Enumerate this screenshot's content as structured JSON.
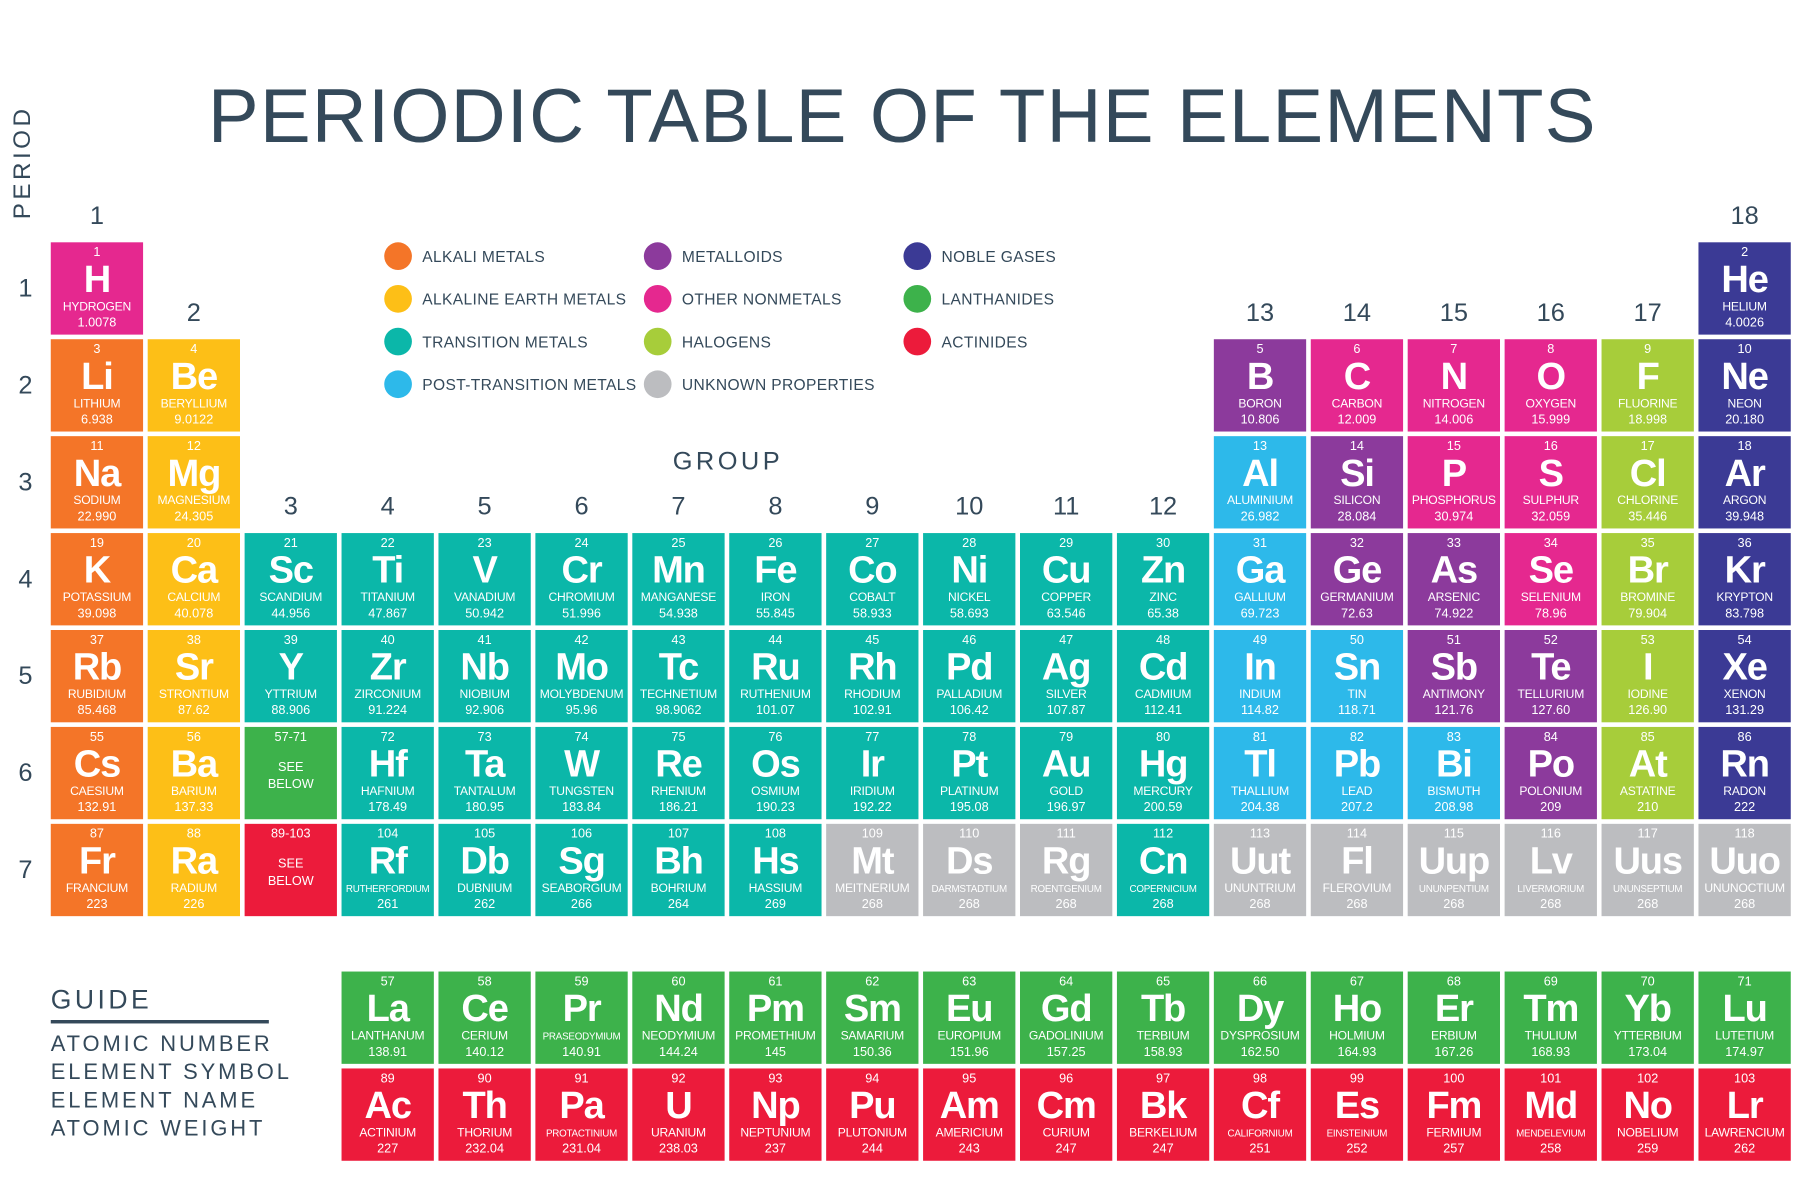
{
  "title": "PERIODIC TABLE OF THE ELEMENTS",
  "period_label": "PERIOD",
  "group_label": "GROUP",
  "periods": [
    "1",
    "2",
    "3",
    "4",
    "5",
    "6",
    "7"
  ],
  "groups": [
    "1",
    "2",
    "3",
    "4",
    "5",
    "6",
    "7",
    "8",
    "9",
    "10",
    "11",
    "12",
    "13",
    "14",
    "15",
    "16",
    "17",
    "18"
  ],
  "colors": {
    "a": "#f47528",
    "ae": "#fdbf17",
    "t": "#0bb7a9",
    "p": "#2db9ea",
    "m": "#8c3a9c",
    "n": "#e5288f",
    "h": "#a7cd3a",
    "g": "#3b3a95",
    "l": "#3db24b",
    "ac": "#ec1b3b",
    "u": "#bcbdc0",
    "text": "#34495a"
  },
  "legend": [
    {
      "key": "a",
      "label": "ALKALI METALS"
    },
    {
      "key": "ae",
      "label": "ALKALINE EARTH METALS"
    },
    {
      "key": "t",
      "label": "TRANSITION METALS"
    },
    {
      "key": "p",
      "label": "POST-TRANSITION METALS"
    },
    {
      "key": "m",
      "label": "METALLOIDS"
    },
    {
      "key": "n",
      "label": "OTHER NONMETALS"
    },
    {
      "key": "h",
      "label": "HALOGENS"
    },
    {
      "key": "u",
      "label": "UNKNOWN PROPERTIES"
    },
    {
      "key": "g",
      "label": "NOBLE GASES"
    },
    {
      "key": "l",
      "label": "LANTHANIDES"
    },
    {
      "key": "ac",
      "label": "ACTINIDES"
    }
  ],
  "placeholders": [
    {
      "period": 6,
      "group": 3,
      "range": "57-71",
      "text": "SEE BELOW",
      "cat": "l"
    },
    {
      "period": 7,
      "group": 3,
      "range": "89-103",
      "text": "SEE BELOW",
      "cat": "ac"
    }
  ],
  "elements": [
    [
      1,
      "H",
      "HYDROGEN",
      "1.0078",
      "n",
      1,
      1
    ],
    [
      2,
      "He",
      "HELIUM",
      "4.0026",
      "g",
      1,
      18
    ],
    [
      3,
      "Li",
      "LITHIUM",
      "6.938",
      "a",
      2,
      1
    ],
    [
      4,
      "Be",
      "BERYLLIUM",
      "9.0122",
      "ae",
      2,
      2
    ],
    [
      5,
      "B",
      "BORON",
      "10.806",
      "m",
      2,
      13
    ],
    [
      6,
      "C",
      "CARBON",
      "12.009",
      "n",
      2,
      14
    ],
    [
      7,
      "N",
      "NITROGEN",
      "14.006",
      "n",
      2,
      15
    ],
    [
      8,
      "O",
      "OXYGEN",
      "15.999",
      "n",
      2,
      16
    ],
    [
      9,
      "F",
      "FLUORINE",
      "18.998",
      "h",
      2,
      17
    ],
    [
      10,
      "Ne",
      "NEON",
      "20.180",
      "g",
      2,
      18
    ],
    [
      11,
      "Na",
      "SODIUM",
      "22.990",
      "a",
      3,
      1
    ],
    [
      12,
      "Mg",
      "MAGNESIUM",
      "24.305",
      "ae",
      3,
      2
    ],
    [
      13,
      "Al",
      "ALUMINIUM",
      "26.982",
      "p",
      3,
      13
    ],
    [
      14,
      "Si",
      "SILICON",
      "28.084",
      "m",
      3,
      14
    ],
    [
      15,
      "P",
      "PHOSPHORUS",
      "30.974",
      "n",
      3,
      15
    ],
    [
      16,
      "S",
      "SULPHUR",
      "32.059",
      "n",
      3,
      16
    ],
    [
      17,
      "Cl",
      "CHLORINE",
      "35.446",
      "h",
      3,
      17
    ],
    [
      18,
      "Ar",
      "ARGON",
      "39.948",
      "g",
      3,
      18
    ],
    [
      19,
      "K",
      "POTASSIUM",
      "39.098",
      "a",
      4,
      1
    ],
    [
      20,
      "Ca",
      "CALCIUM",
      "40.078",
      "ae",
      4,
      2
    ],
    [
      21,
      "Sc",
      "SCANDIUM",
      "44.956",
      "t",
      4,
      3
    ],
    [
      22,
      "Ti",
      "TITANIUM",
      "47.867",
      "t",
      4,
      4
    ],
    [
      23,
      "V",
      "VANADIUM",
      "50.942",
      "t",
      4,
      5
    ],
    [
      24,
      "Cr",
      "CHROMIUM",
      "51.996",
      "t",
      4,
      6
    ],
    [
      25,
      "Mn",
      "MANGANESE",
      "54.938",
      "t",
      4,
      7
    ],
    [
      26,
      "Fe",
      "IRON",
      "55.845",
      "t",
      4,
      8
    ],
    [
      27,
      "Co",
      "COBALT",
      "58.933",
      "t",
      4,
      9
    ],
    [
      28,
      "Ni",
      "NICKEL",
      "58.693",
      "t",
      4,
      10
    ],
    [
      29,
      "Cu",
      "COPPER",
      "63.546",
      "t",
      4,
      11
    ],
    [
      30,
      "Zn",
      "ZINC",
      "65.38",
      "t",
      4,
      12
    ],
    [
      31,
      "Ga",
      "GALLIUM",
      "69.723",
      "p",
      4,
      13
    ],
    [
      32,
      "Ge",
      "GERMANIUM",
      "72.63",
      "m",
      4,
      14
    ],
    [
      33,
      "As",
      "ARSENIC",
      "74.922",
      "m",
      4,
      15
    ],
    [
      34,
      "Se",
      "SELENIUM",
      "78.96",
      "n",
      4,
      16
    ],
    [
      35,
      "Br",
      "BROMINE",
      "79.904",
      "h",
      4,
      17
    ],
    [
      36,
      "Kr",
      "KRYPTON",
      "83.798",
      "g",
      4,
      18
    ],
    [
      37,
      "Rb",
      "RUBIDIUM",
      "85.468",
      "a",
      5,
      1
    ],
    [
      38,
      "Sr",
      "STRONTIUM",
      "87.62",
      "ae",
      5,
      2
    ],
    [
      39,
      "Y",
      "YTTRIUM",
      "88.906",
      "t",
      5,
      3
    ],
    [
      40,
      "Zr",
      "ZIRCONIUM",
      "91.224",
      "t",
      5,
      4
    ],
    [
      41,
      "Nb",
      "NIOBIUM",
      "92.906",
      "t",
      5,
      5
    ],
    [
      42,
      "Mo",
      "MOLYBDENUM",
      "95.96",
      "t",
      5,
      6
    ],
    [
      43,
      "Tc",
      "TECHNETIUM",
      "98.9062",
      "t",
      5,
      7
    ],
    [
      44,
      "Ru",
      "RUTHENIUM",
      "101.07",
      "t",
      5,
      8
    ],
    [
      45,
      "Rh",
      "RHODIUM",
      "102.91",
      "t",
      5,
      9
    ],
    [
      46,
      "Pd",
      "PALLADIUM",
      "106.42",
      "t",
      5,
      10
    ],
    [
      47,
      "Ag",
      "SILVER",
      "107.87",
      "t",
      5,
      11
    ],
    [
      48,
      "Cd",
      "CADMIUM",
      "112.41",
      "t",
      5,
      12
    ],
    [
      49,
      "In",
      "INDIUM",
      "114.82",
      "p",
      5,
      13
    ],
    [
      50,
      "Sn",
      "TIN",
      "118.71",
      "p",
      5,
      14
    ],
    [
      51,
      "Sb",
      "ANTIMONY",
      "121.76",
      "m",
      5,
      15
    ],
    [
      52,
      "Te",
      "TELLURIUM",
      "127.60",
      "m",
      5,
      16
    ],
    [
      53,
      "I",
      "IODINE",
      "126.90",
      "h",
      5,
      17
    ],
    [
      54,
      "Xe",
      "XENON",
      "131.29",
      "g",
      5,
      18
    ],
    [
      55,
      "Cs",
      "CAESIUM",
      "132.91",
      "a",
      6,
      1
    ],
    [
      56,
      "Ba",
      "BARIUM",
      "137.33",
      "ae",
      6,
      2
    ],
    [
      72,
      "Hf",
      "HAFNIUM",
      "178.49",
      "t",
      6,
      4
    ],
    [
      73,
      "Ta",
      "TANTALUM",
      "180.95",
      "t",
      6,
      5
    ],
    [
      74,
      "W",
      "TUNGSTEN",
      "183.84",
      "t",
      6,
      6
    ],
    [
      75,
      "Re",
      "RHENIUM",
      "186.21",
      "t",
      6,
      7
    ],
    [
      76,
      "Os",
      "OSMIUM",
      "190.23",
      "t",
      6,
      8
    ],
    [
      77,
      "Ir",
      "IRIDIUM",
      "192.22",
      "t",
      6,
      9
    ],
    [
      78,
      "Pt",
      "PLATINUM",
      "195.08",
      "t",
      6,
      10
    ],
    [
      79,
      "Au",
      "GOLD",
      "196.97",
      "t",
      6,
      11
    ],
    [
      80,
      "Hg",
      "MERCURY",
      "200.59",
      "t",
      6,
      12
    ],
    [
      81,
      "Tl",
      "THALLIUM",
      "204.38",
      "p",
      6,
      13
    ],
    [
      82,
      "Pb",
      "LEAD",
      "207.2",
      "p",
      6,
      14
    ],
    [
      83,
      "Bi",
      "BISMUTH",
      "208.98",
      "p",
      6,
      15
    ],
    [
      84,
      "Po",
      "POLONIUM",
      "209",
      "m",
      6,
      16
    ],
    [
      85,
      "At",
      "ASTATINE",
      "210",
      "h",
      6,
      17
    ],
    [
      86,
      "Rn",
      "RADON",
      "222",
      "g",
      6,
      18
    ],
    [
      87,
      "Fr",
      "FRANCIUM",
      "223",
      "a",
      7,
      1
    ],
    [
      88,
      "Ra",
      "RADIUM",
      "226",
      "ae",
      7,
      2
    ],
    [
      104,
      "Rf",
      "RUTHERFORDIUM",
      "261",
      "t",
      7,
      4
    ],
    [
      105,
      "Db",
      "DUBNIUM",
      "262",
      "t",
      7,
      5
    ],
    [
      106,
      "Sg",
      "SEABORGIUM",
      "266",
      "t",
      7,
      6
    ],
    [
      107,
      "Bh",
      "BOHRIUM",
      "264",
      "t",
      7,
      7
    ],
    [
      108,
      "Hs",
      "HASSIUM",
      "269",
      "t",
      7,
      8
    ],
    [
      109,
      "Mt",
      "MEITNERIUM",
      "268",
      "u",
      7,
      9
    ],
    [
      110,
      "Ds",
      "DARMSTADTIUM",
      "268",
      "u",
      7,
      10
    ],
    [
      111,
      "Rg",
      "ROENTGENIUM",
      "268",
      "u",
      7,
      11
    ],
    [
      112,
      "Cn",
      "COPERNICIUM",
      "268",
      "t",
      7,
      12
    ],
    [
      113,
      "Uut",
      "UNUNTRIUM",
      "268",
      "u",
      7,
      13
    ],
    [
      114,
      "Fl",
      "FLEROVIUM",
      "268",
      "u",
      7,
      14
    ],
    [
      115,
      "Uup",
      "UNUNPENTIUM",
      "268",
      "u",
      7,
      15
    ],
    [
      116,
      "Lv",
      "LIVERMORIUM",
      "268",
      "u",
      7,
      16
    ],
    [
      117,
      "Uus",
      "UNUNSEPTIUM",
      "268",
      "u",
      7,
      17
    ],
    [
      118,
      "Uuo",
      "UNUNOCTIUM",
      "268",
      "u",
      7,
      18
    ],
    [
      57,
      "La",
      "LANTHANUM",
      "138.91",
      "l",
      8,
      4
    ],
    [
      58,
      "Ce",
      "CERIUM",
      "140.12",
      "l",
      8,
      5
    ],
    [
      59,
      "Pr",
      "PRASEODYMIUM",
      "140.91",
      "l",
      8,
      6
    ],
    [
      60,
      "Nd",
      "NEODYMIUM",
      "144.24",
      "l",
      8,
      7
    ],
    [
      61,
      "Pm",
      "PROMETHIUM",
      "145",
      "l",
      8,
      8
    ],
    [
      62,
      "Sm",
      "SAMARIUM",
      "150.36",
      "l",
      8,
      9
    ],
    [
      63,
      "Eu",
      "EUROPIUM",
      "151.96",
      "l",
      8,
      10
    ],
    [
      64,
      "Gd",
      "GADOLINIUM",
      "157.25",
      "l",
      8,
      11
    ],
    [
      65,
      "Tb",
      "TERBIUM",
      "158.93",
      "l",
      8,
      12
    ],
    [
      66,
      "Dy",
      "DYSPROSIUM",
      "162.50",
      "l",
      8,
      13
    ],
    [
      67,
      "Ho",
      "HOLMIUM",
      "164.93",
      "l",
      8,
      14
    ],
    [
      68,
      "Er",
      "ERBIUM",
      "167.26",
      "l",
      8,
      15
    ],
    [
      69,
      "Tm",
      "THULIUM",
      "168.93",
      "l",
      8,
      16
    ],
    [
      70,
      "Yb",
      "YTTERBIUM",
      "173.04",
      "l",
      8,
      17
    ],
    [
      71,
      "Lu",
      "LUTETIUM",
      "174.97",
      "l",
      8,
      18
    ],
    [
      89,
      "Ac",
      "ACTINIUM",
      "227",
      "ac",
      9,
      4
    ],
    [
      90,
      "Th",
      "THORIUM",
      "232.04",
      "ac",
      9,
      5
    ],
    [
      91,
      "Pa",
      "PROTACTINIUM",
      "231.04",
      "ac",
      9,
      6
    ],
    [
      92,
      "U",
      "URANIUM",
      "238.03",
      "ac",
      9,
      7
    ],
    [
      93,
      "Np",
      "NEPTUNIUM",
      "237",
      "ac",
      9,
      8
    ],
    [
      94,
      "Pu",
      "PLUTONIUM",
      "244",
      "ac",
      9,
      9
    ],
    [
      95,
      "Am",
      "AMERICIUM",
      "243",
      "ac",
      9,
      10
    ],
    [
      96,
      "Cm",
      "CURIUM",
      "247",
      "ac",
      9,
      11
    ],
    [
      97,
      "Bk",
      "BERKELIUM",
      "247",
      "ac",
      9,
      12
    ],
    [
      98,
      "Cf",
      "CALIFORNIUM",
      "251",
      "ac",
      9,
      13
    ],
    [
      99,
      "Es",
      "EINSTEINIUM",
      "252",
      "ac",
      9,
      14
    ],
    [
      100,
      "Fm",
      "FERMIUM",
      "257",
      "ac",
      9,
      15
    ],
    [
      101,
      "Md",
      "MENDELEVIUM",
      "258",
      "ac",
      9,
      16
    ],
    [
      102,
      "No",
      "NOBELIUM",
      "259",
      "ac",
      9,
      17
    ],
    [
      103,
      "Lr",
      "LAWRENCIUM",
      "262",
      "ac",
      9,
      18
    ]
  ],
  "guide": {
    "title": "GUIDE",
    "lines": [
      "ATOMIC NUMBER",
      "ELEMENT SYMBOL",
      "ELEMENT NAME",
      "ATOMIC WEIGHT"
    ]
  }
}
